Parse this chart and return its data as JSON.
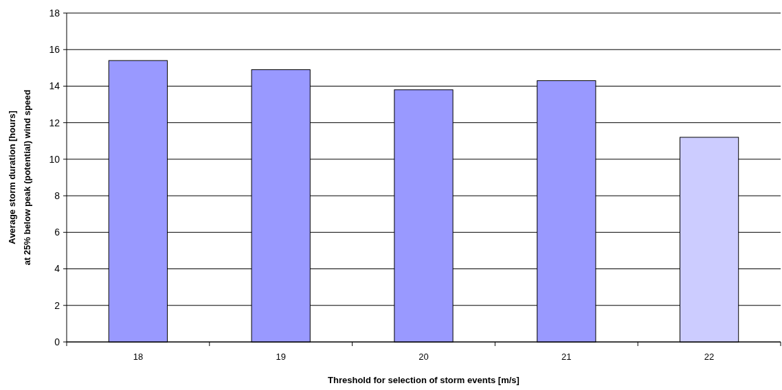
{
  "chart_data": {
    "type": "bar",
    "xlabel": "Threshold for selection of storm events [m/s]",
    "ylabel": "Average storm duration [hours]\nat 25% below peak (potential) wind speed",
    "categories": [
      "18",
      "19",
      "20",
      "21",
      "22"
    ],
    "values": [
      15.4,
      14.9,
      13.8,
      14.3,
      11.2
    ],
    "colors": [
      "#9999ff",
      "#9999ff",
      "#9999ff",
      "#9999ff",
      "#ccccff"
    ],
    "ylim": [
      0,
      18
    ],
    "yticks": [
      0,
      2,
      4,
      6,
      8,
      10,
      12,
      14,
      16,
      18
    ],
    "grid": "y"
  }
}
